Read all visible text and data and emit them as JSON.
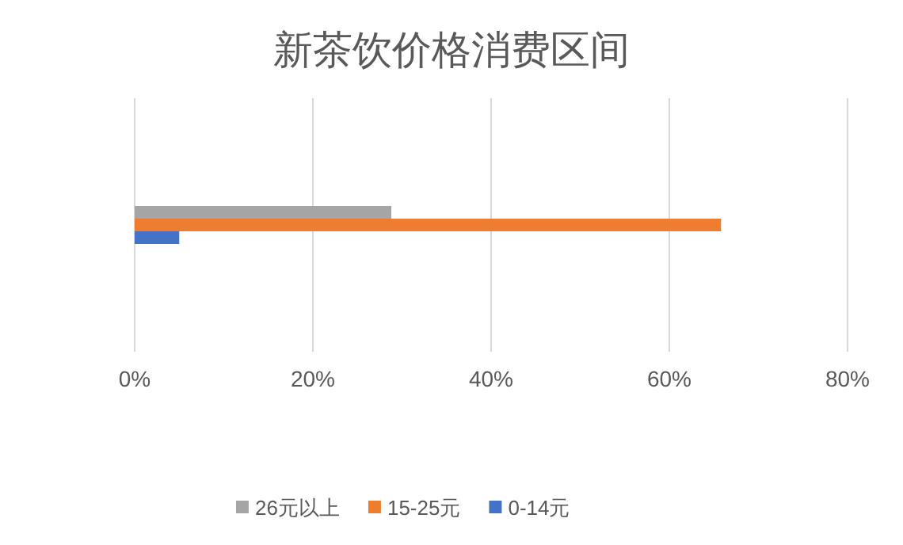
{
  "chart_data": {
    "type": "bar",
    "orientation": "horizontal",
    "title": "新茶饮价格消费区间",
    "categories": [
      null
    ],
    "series": [
      {
        "name": "26元以上",
        "color": "#a5a5a5",
        "values": [
          28.8
        ]
      },
      {
        "name": "15-25元",
        "color": "#ed7d31",
        "values": [
          65.8
        ]
      },
      {
        "name": "0-14元",
        "color": "#4472c4",
        "values": [
          5
        ]
      }
    ],
    "xlim": [
      0,
      80
    ],
    "xticks": [
      {
        "value": 0,
        "label": "0%"
      },
      {
        "value": 20,
        "label": "20%"
      },
      {
        "value": 40,
        "label": "40%"
      },
      {
        "value": 60,
        "label": "60%"
      },
      {
        "value": 80,
        "label": "80%"
      }
    ],
    "grid": "x",
    "legend": "bottom"
  }
}
